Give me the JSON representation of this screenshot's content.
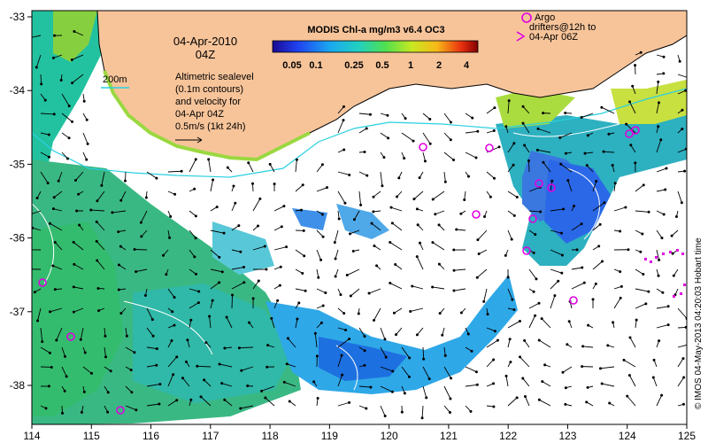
{
  "map": {
    "date": "04-Apr-2010",
    "time": "04Z",
    "depth_contour_label": "200m",
    "legend_lines": [
      "Altimetric sealevel",
      "(0.1m contours)",
      "and velocity for",
      "04-Apr 04Z",
      "0.5m/s (1kt 24h)"
    ],
    "colorbar": {
      "title": "MODIS Chl-a mg/m3 v6.4 OC3",
      "ticks": [
        "0.05",
        "0.1",
        "0.25",
        "0.5",
        "1",
        "2",
        "4"
      ]
    },
    "argo_legend": {
      "line1": "Argo",
      "line2": "drifters@12h to",
      "line3": "04-Apr 06Z"
    },
    "credit": "© IMOS 04-May-2013 04:20:03 Hobart time",
    "x_axis": {
      "ticks": [
        "114",
        "115",
        "116",
        "117",
        "118",
        "119",
        "120",
        "121",
        "122",
        "123",
        "124",
        "125"
      ]
    },
    "y_axis": {
      "ticks": [
        "-33",
        "-34",
        "-35",
        "-36",
        "-37",
        "-38"
      ]
    },
    "colors": {
      "land": "#f7c49a",
      "cloud": "#ffffff",
      "argo": "#e000e0",
      "contour_200m": "#2ad0e0",
      "arrow": "#000000"
    }
  }
}
